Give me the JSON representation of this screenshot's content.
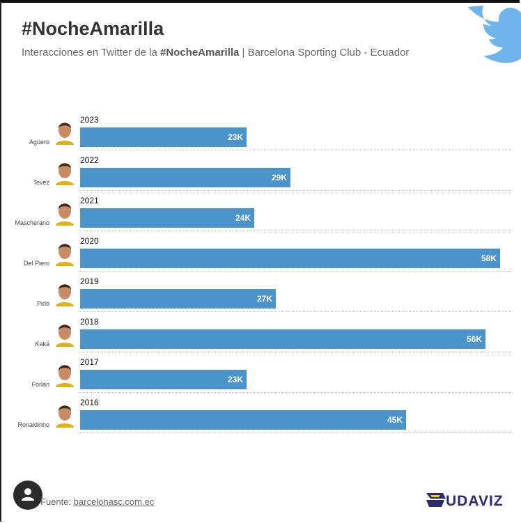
{
  "header": {
    "title": "#NocheAmarilla",
    "subtitle_prefix": "Interacciones en Twitter de la ",
    "subtitle_bold": "#NocheAmarilla",
    "subtitle_suffix": " | Barcelona Sporting Club - Ecuador"
  },
  "footer": {
    "source_prefix": "Fuente: ",
    "source_link": "barcelonasc.com.ec",
    "brand": "UDAVIZ"
  },
  "colors": {
    "bar": "#4b93cb",
    "twitter": "#6fb4ea",
    "brand": "#2a2a6e"
  },
  "icons": [
    "twitter-bird-icon",
    "user-icon",
    "udaviz-logo-icon"
  ],
  "chart_data": {
    "type": "bar",
    "orientation": "horizontal",
    "title": "#NocheAmarilla",
    "subtitle": "Interacciones en Twitter de la #NocheAmarilla | Barcelona Sporting Club - Ecuador",
    "xlim": [
      0,
      60
    ],
    "unit": "K",
    "grid": false,
    "rows": [
      {
        "year": "2023",
        "player": "Agüero",
        "value": 23,
        "label": "23K"
      },
      {
        "year": "2022",
        "player": "Tevez",
        "value": 29,
        "label": "29K"
      },
      {
        "year": "2021",
        "player": "Mascherano",
        "value": 24,
        "label": "24K"
      },
      {
        "year": "2020",
        "player": "Del Piero",
        "value": 58,
        "label": "58K"
      },
      {
        "year": "2019",
        "player": "Pirlo",
        "value": 27,
        "label": "27K"
      },
      {
        "year": "2018",
        "player": "Kaká",
        "value": 56,
        "label": "56K"
      },
      {
        "year": "2017",
        "player": "Forlán",
        "value": 23,
        "label": "23K"
      },
      {
        "year": "2016",
        "player": "Ronaldinho",
        "value": 45,
        "label": "45K"
      }
    ]
  }
}
